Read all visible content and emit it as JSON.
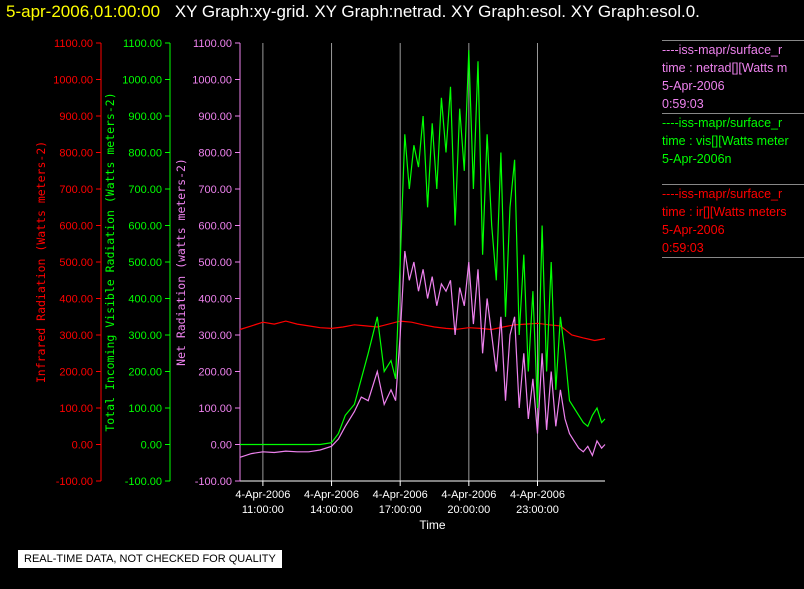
{
  "header": {
    "datetime": "5-apr-2006,01:00:00",
    "graphs": "XY Graph:xy-grid.  XY Graph:netrad.  XY Graph:esol.  XY Graph:esol.0."
  },
  "legend": [
    {
      "source": "----iss-mapr/surface_r",
      "var": "time : netrad[][Watts m",
      "date": "5-Apr-2006",
      "time": "0:59:03",
      "color": "#ee82ee"
    },
    {
      "source": "----iss-mapr/surface_r",
      "var": "time : vis[][Watts meter",
      "date": "5-Apr-2006n",
      "time": "",
      "color": "#00ff00"
    },
    {
      "source": "----iss-mapr/surface_r",
      "var": "time : ir[][Watts meters",
      "date": "5-Apr-2006",
      "time": "0:59:03",
      "color": "#ff0000"
    }
  ],
  "footer": "REAL-TIME DATA, NOT CHECKED FOR QUALITY",
  "chart_data": {
    "type": "line",
    "xlabel": "Time",
    "x_ticks": [
      {
        "date": "4-Apr-2006",
        "time": "11:00:00",
        "hour": 11
      },
      {
        "date": "4-Apr-2006",
        "time": "14:00:00",
        "hour": 14
      },
      {
        "date": "4-Apr-2006",
        "time": "17:00:00",
        "hour": 17
      },
      {
        "date": "4-Apr-2006",
        "time": "20:00:00",
        "hour": 20
      },
      {
        "date": "4-Apr-2006",
        "time": "23:00:00",
        "hour": 23
      }
    ],
    "xlim_hours": [
      10.0,
      25.95
    ],
    "grid_x": true,
    "y_axes": [
      {
        "label": "Infrared Radiation (Watts meters-2)",
        "color": "#ff0000",
        "ylim": [
          -100,
          1100
        ],
        "ticks": [
          "-100.00",
          "0.00",
          "100.00",
          "200.00",
          "300.00",
          "400.00",
          "500.00",
          "600.00",
          "700.00",
          "800.00",
          "900.00",
          "1000.00",
          "1100.00"
        ]
      },
      {
        "label": "Total Incoming Visible Radiation (Watts meters-2)",
        "color": "#00ff00",
        "ylim": [
          -100,
          1100
        ],
        "ticks": [
          "-100.00",
          "0.00",
          "100.00",
          "200.00",
          "300.00",
          "400.00",
          "500.00",
          "600.00",
          "700.00",
          "800.00",
          "900.00",
          "1000.00",
          "1100.00"
        ]
      },
      {
        "label": "Net Radiation (watts meters-2)",
        "color": "#ee82ee",
        "ylim": [
          -100,
          1100
        ],
        "ticks": [
          "-100.00",
          "0.00",
          "100.00",
          "200.00",
          "300.00",
          "400.00",
          "500.00",
          "600.00",
          "700.00",
          "800.00",
          "900.00",
          "1000.00",
          "1100.00"
        ]
      }
    ],
    "series": [
      {
        "key": "ir",
        "color": "#ff0000",
        "x": [
          10.0,
          10.5,
          11.0,
          11.5,
          12.0,
          12.5,
          13.0,
          13.5,
          14.0,
          14.5,
          15.0,
          15.5,
          16.0,
          16.5,
          17.0,
          17.5,
          18.0,
          18.5,
          19.0,
          19.5,
          20.0,
          20.5,
          21.0,
          21.5,
          22.0,
          22.5,
          23.0,
          23.5,
          24.0,
          24.5,
          25.0,
          25.5,
          25.95
        ],
        "y": [
          315,
          325,
          335,
          330,
          338,
          330,
          325,
          320,
          318,
          322,
          328,
          325,
          322,
          330,
          338,
          335,
          328,
          322,
          318,
          316,
          320,
          318,
          315,
          322,
          328,
          330,
          332,
          328,
          325,
          300,
          292,
          285,
          290
        ]
      },
      {
        "key": "vis",
        "color": "#00ff00",
        "x": [
          10.0,
          11.0,
          12.0,
          13.0,
          13.5,
          14.0,
          14.3,
          14.6,
          15.0,
          15.3,
          15.6,
          16.0,
          16.3,
          16.6,
          16.8,
          17.0,
          17.2,
          17.4,
          17.6,
          17.8,
          18.0,
          18.2,
          18.4,
          18.6,
          18.8,
          19.0,
          19.2,
          19.4,
          19.6,
          19.8,
          20.0,
          20.2,
          20.4,
          20.6,
          20.8,
          21.0,
          21.2,
          21.4,
          21.6,
          21.8,
          22.0,
          22.2,
          22.4,
          22.6,
          22.8,
          23.0,
          23.2,
          23.4,
          23.6,
          23.8,
          24.0,
          24.2,
          24.4,
          24.6,
          24.8,
          25.0,
          25.2,
          25.4,
          25.6,
          25.8,
          25.95
        ],
        "y": [
          0,
          0,
          0,
          0,
          0,
          5,
          30,
          80,
          110,
          180,
          250,
          350,
          200,
          230,
          180,
          500,
          850,
          700,
          820,
          760,
          900,
          650,
          880,
          700,
          950,
          800,
          980,
          600,
          920,
          750,
          1080,
          700,
          1050,
          520,
          850,
          600,
          450,
          800,
          350,
          650,
          780,
          300,
          520,
          200,
          420,
          100,
          600,
          200,
          500,
          150,
          350,
          250,
          120,
          100,
          80,
          60,
          50,
          80,
          100,
          60,
          70
        ]
      },
      {
        "key": "netrad",
        "color": "#ee82ee",
        "x": [
          10.0,
          10.5,
          11.0,
          11.5,
          12.0,
          12.5,
          13.0,
          13.5,
          14.0,
          14.3,
          14.6,
          15.0,
          15.3,
          15.6,
          16.0,
          16.3,
          16.6,
          16.8,
          17.0,
          17.2,
          17.4,
          17.6,
          17.8,
          18.0,
          18.2,
          18.4,
          18.6,
          18.8,
          19.0,
          19.2,
          19.4,
          19.6,
          19.8,
          20.0,
          20.2,
          20.4,
          20.6,
          20.8,
          21.0,
          21.2,
          21.4,
          21.6,
          21.8,
          22.0,
          22.2,
          22.4,
          22.6,
          22.8,
          23.0,
          23.2,
          23.4,
          23.6,
          23.8,
          24.0,
          24.2,
          24.4,
          24.6,
          24.8,
          25.0,
          25.2,
          25.4,
          25.6,
          25.8,
          25.95
        ],
        "y": [
          -35,
          -25,
          -20,
          -22,
          -18,
          -20,
          -20,
          -15,
          -5,
          15,
          50,
          90,
          130,
          120,
          200,
          110,
          150,
          120,
          300,
          530,
          450,
          500,
          420,
          480,
          400,
          460,
          380,
          440,
          420,
          450,
          300,
          430,
          380,
          500,
          330,
          480,
          250,
          400,
          300,
          200,
          350,
          120,
          300,
          350,
          100,
          250,
          70,
          180,
          30,
          250,
          40,
          200,
          50,
          150,
          70,
          30,
          10,
          -10,
          -20,
          -5,
          -30,
          10,
          -10,
          0
        ]
      }
    ]
  }
}
